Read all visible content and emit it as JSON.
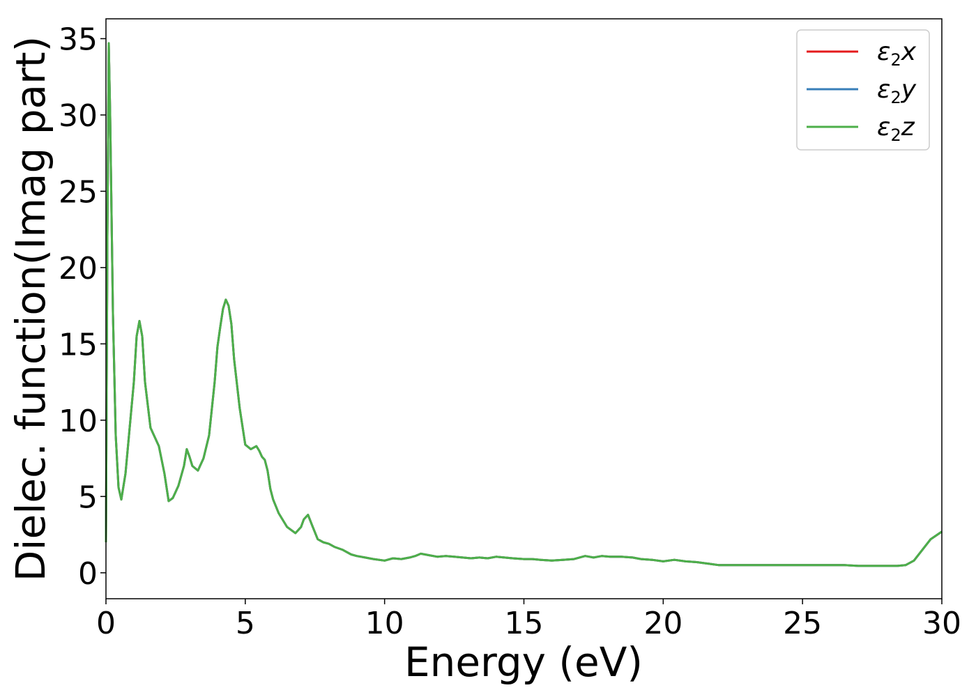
{
  "chart_data": {
    "type": "line",
    "xlabel": "Energy (eV)",
    "ylabel": "Dielec. function(Imag part)",
    "xlim": [
      0,
      30
    ],
    "ylim": [
      -1.7,
      36.3
    ],
    "xticks": [
      0,
      5,
      10,
      15,
      20,
      25,
      30
    ],
    "yticks": [
      0,
      5,
      10,
      15,
      20,
      25,
      30,
      35
    ],
    "grid": false,
    "legend_position": "top-right",
    "series": [
      {
        "name": "ε2x",
        "legend": {
          "base": "ε",
          "sub": "2",
          "suffix": "x"
        },
        "color": "#e41a1c",
        "x": [
          0.0,
          0.05,
          0.1,
          0.15,
          0.25,
          0.35,
          0.45,
          0.55,
          0.7,
          0.85,
          1.0,
          1.1,
          1.2,
          1.3,
          1.4,
          1.6,
          1.9,
          2.1,
          2.25,
          2.4,
          2.6,
          2.8,
          2.9,
          3.0,
          3.1,
          3.3,
          3.5,
          3.7,
          3.9,
          4.0,
          4.1,
          4.2,
          4.3,
          4.4,
          4.5,
          4.6,
          4.8,
          5.0,
          5.2,
          5.4,
          5.5,
          5.6,
          5.7,
          5.8,
          5.9,
          6.0,
          6.2,
          6.5,
          6.8,
          7.0,
          7.1,
          7.25,
          7.4,
          7.6,
          7.8,
          8.0,
          8.2,
          8.5,
          8.8,
          9.0,
          9.3,
          9.6,
          10.0,
          10.3,
          10.6,
          10.9,
          11.1,
          11.3,
          11.6,
          11.9,
          12.2,
          12.5,
          12.8,
          13.1,
          13.4,
          13.7,
          14.0,
          14.3,
          14.6,
          15.0,
          15.3,
          15.6,
          16.0,
          16.4,
          16.8,
          17.2,
          17.5,
          17.8,
          18.1,
          18.5,
          18.9,
          19.2,
          19.6,
          20.0,
          20.4,
          20.8,
          21.2,
          21.6,
          22.0,
          22.5,
          23.0,
          23.5,
          24.0,
          24.5,
          25.0,
          25.5,
          26.0,
          26.5,
          27.0,
          27.5,
          28.0,
          28.4,
          28.7,
          29.0,
          29.3,
          29.6,
          30.0
        ],
        "y": [
          2.0,
          22.0,
          34.7,
          30.0,
          17.0,
          9.0,
          5.6,
          4.8,
          6.5,
          9.5,
          12.5,
          15.5,
          16.5,
          15.5,
          12.5,
          9.5,
          8.3,
          6.5,
          4.7,
          4.9,
          5.7,
          7.0,
          8.1,
          7.6,
          7.0,
          6.7,
          7.5,
          9.0,
          12.5,
          14.8,
          16.1,
          17.3,
          17.9,
          17.5,
          16.3,
          14.0,
          10.8,
          8.4,
          8.1,
          8.3,
          8.0,
          7.6,
          7.4,
          6.7,
          5.5,
          4.8,
          3.9,
          3.0,
          2.6,
          3.0,
          3.5,
          3.8,
          3.1,
          2.2,
          2.0,
          1.9,
          1.7,
          1.5,
          1.2,
          1.1,
          1.0,
          0.9,
          0.8,
          0.95,
          0.9,
          1.0,
          1.1,
          1.25,
          1.15,
          1.05,
          1.1,
          1.05,
          1.0,
          0.95,
          1.0,
          0.95,
          1.05,
          1.0,
          0.95,
          0.9,
          0.9,
          0.85,
          0.8,
          0.85,
          0.9,
          1.1,
          1.0,
          1.1,
          1.05,
          1.05,
          1.0,
          0.9,
          0.85,
          0.75,
          0.85,
          0.75,
          0.7,
          0.6,
          0.5,
          0.5,
          0.5,
          0.5,
          0.5,
          0.5,
          0.5,
          0.5,
          0.5,
          0.5,
          0.45,
          0.45,
          0.45,
          0.45,
          0.5,
          0.8,
          1.5,
          2.2,
          2.7
        ]
      },
      {
        "name": "ε2y",
        "legend": {
          "base": "ε",
          "sub": "2",
          "suffix": "y"
        },
        "color": "#377eb8",
        "x": [
          0.0,
          0.05,
          0.1,
          0.15,
          0.25,
          0.35,
          0.45,
          0.55,
          0.7,
          0.85,
          1.0,
          1.1,
          1.2,
          1.3,
          1.4,
          1.6,
          1.9,
          2.1,
          2.25,
          2.4,
          2.6,
          2.8,
          2.9,
          3.0,
          3.1,
          3.3,
          3.5,
          3.7,
          3.9,
          4.0,
          4.1,
          4.2,
          4.3,
          4.4,
          4.5,
          4.6,
          4.8,
          5.0,
          5.2,
          5.4,
          5.5,
          5.6,
          5.7,
          5.8,
          5.9,
          6.0,
          6.2,
          6.5,
          6.8,
          7.0,
          7.1,
          7.25,
          7.4,
          7.6,
          7.8,
          8.0,
          8.2,
          8.5,
          8.8,
          9.0,
          9.3,
          9.6,
          10.0,
          10.3,
          10.6,
          10.9,
          11.1,
          11.3,
          11.6,
          11.9,
          12.2,
          12.5,
          12.8,
          13.1,
          13.4,
          13.7,
          14.0,
          14.3,
          14.6,
          15.0,
          15.3,
          15.6,
          16.0,
          16.4,
          16.8,
          17.2,
          17.5,
          17.8,
          18.1,
          18.5,
          18.9,
          19.2,
          19.6,
          20.0,
          20.4,
          20.8,
          21.2,
          21.6,
          22.0,
          22.5,
          23.0,
          23.5,
          24.0,
          24.5,
          25.0,
          25.5,
          26.0,
          26.5,
          27.0,
          27.5,
          28.0,
          28.4,
          28.7,
          29.0,
          29.3,
          29.6,
          30.0
        ],
        "y": [
          2.0,
          22.0,
          34.7,
          30.0,
          17.0,
          9.0,
          5.6,
          4.8,
          6.5,
          9.5,
          12.5,
          15.5,
          16.5,
          15.5,
          12.5,
          9.5,
          8.3,
          6.5,
          4.7,
          4.9,
          5.7,
          7.0,
          8.1,
          7.6,
          7.0,
          6.7,
          7.5,
          9.0,
          12.5,
          14.8,
          16.1,
          17.3,
          17.9,
          17.5,
          16.3,
          14.0,
          10.8,
          8.4,
          8.1,
          8.3,
          8.0,
          7.6,
          7.4,
          6.7,
          5.5,
          4.8,
          3.9,
          3.0,
          2.6,
          3.0,
          3.5,
          3.8,
          3.1,
          2.2,
          2.0,
          1.9,
          1.7,
          1.5,
          1.2,
          1.1,
          1.0,
          0.9,
          0.8,
          0.95,
          0.9,
          1.0,
          1.1,
          1.25,
          1.15,
          1.05,
          1.1,
          1.05,
          1.0,
          0.95,
          1.0,
          0.95,
          1.05,
          1.0,
          0.95,
          0.9,
          0.9,
          0.85,
          0.8,
          0.85,
          0.9,
          1.1,
          1.0,
          1.1,
          1.05,
          1.05,
          1.0,
          0.9,
          0.85,
          0.75,
          0.85,
          0.75,
          0.7,
          0.6,
          0.5,
          0.5,
          0.5,
          0.5,
          0.5,
          0.5,
          0.5,
          0.5,
          0.5,
          0.5,
          0.45,
          0.45,
          0.45,
          0.45,
          0.5,
          0.8,
          1.5,
          2.2,
          2.7
        ]
      },
      {
        "name": "ε2z",
        "legend": {
          "base": "ε",
          "sub": "2",
          "suffix": "z"
        },
        "color": "#4daf4a",
        "x": [
          0.0,
          0.05,
          0.1,
          0.15,
          0.25,
          0.35,
          0.45,
          0.55,
          0.7,
          0.85,
          1.0,
          1.1,
          1.2,
          1.3,
          1.4,
          1.6,
          1.9,
          2.1,
          2.25,
          2.4,
          2.6,
          2.8,
          2.9,
          3.0,
          3.1,
          3.3,
          3.5,
          3.7,
          3.9,
          4.0,
          4.1,
          4.2,
          4.3,
          4.4,
          4.5,
          4.6,
          4.8,
          5.0,
          5.2,
          5.4,
          5.5,
          5.6,
          5.7,
          5.8,
          5.9,
          6.0,
          6.2,
          6.5,
          6.8,
          7.0,
          7.1,
          7.25,
          7.4,
          7.6,
          7.8,
          8.0,
          8.2,
          8.5,
          8.8,
          9.0,
          9.3,
          9.6,
          10.0,
          10.3,
          10.6,
          10.9,
          11.1,
          11.3,
          11.6,
          11.9,
          12.2,
          12.5,
          12.8,
          13.1,
          13.4,
          13.7,
          14.0,
          14.3,
          14.6,
          15.0,
          15.3,
          15.6,
          16.0,
          16.4,
          16.8,
          17.2,
          17.5,
          17.8,
          18.1,
          18.5,
          18.9,
          19.2,
          19.6,
          20.0,
          20.4,
          20.8,
          21.2,
          21.6,
          22.0,
          22.5,
          23.0,
          23.5,
          24.0,
          24.5,
          25.0,
          25.5,
          26.0,
          26.5,
          27.0,
          27.5,
          28.0,
          28.4,
          28.7,
          29.0,
          29.3,
          29.6,
          30.0
        ],
        "y": [
          2.0,
          22.0,
          34.7,
          30.0,
          17.0,
          9.0,
          5.6,
          4.8,
          6.5,
          9.5,
          12.5,
          15.5,
          16.5,
          15.5,
          12.5,
          9.5,
          8.3,
          6.5,
          4.7,
          4.9,
          5.7,
          7.0,
          8.1,
          7.6,
          7.0,
          6.7,
          7.5,
          9.0,
          12.5,
          14.8,
          16.1,
          17.3,
          17.9,
          17.5,
          16.3,
          14.0,
          10.8,
          8.4,
          8.1,
          8.3,
          8.0,
          7.6,
          7.4,
          6.7,
          5.5,
          4.8,
          3.9,
          3.0,
          2.6,
          3.0,
          3.5,
          3.8,
          3.1,
          2.2,
          2.0,
          1.9,
          1.7,
          1.5,
          1.2,
          1.1,
          1.0,
          0.9,
          0.8,
          0.95,
          0.9,
          1.0,
          1.1,
          1.25,
          1.15,
          1.05,
          1.1,
          1.05,
          1.0,
          0.95,
          1.0,
          0.95,
          1.05,
          1.0,
          0.95,
          0.9,
          0.9,
          0.85,
          0.8,
          0.85,
          0.9,
          1.1,
          1.0,
          1.1,
          1.05,
          1.05,
          1.0,
          0.9,
          0.85,
          0.75,
          0.85,
          0.75,
          0.7,
          0.6,
          0.5,
          0.5,
          0.5,
          0.5,
          0.5,
          0.5,
          0.5,
          0.5,
          0.5,
          0.5,
          0.45,
          0.45,
          0.45,
          0.45,
          0.5,
          0.8,
          1.5,
          2.2,
          2.7
        ]
      }
    ]
  }
}
